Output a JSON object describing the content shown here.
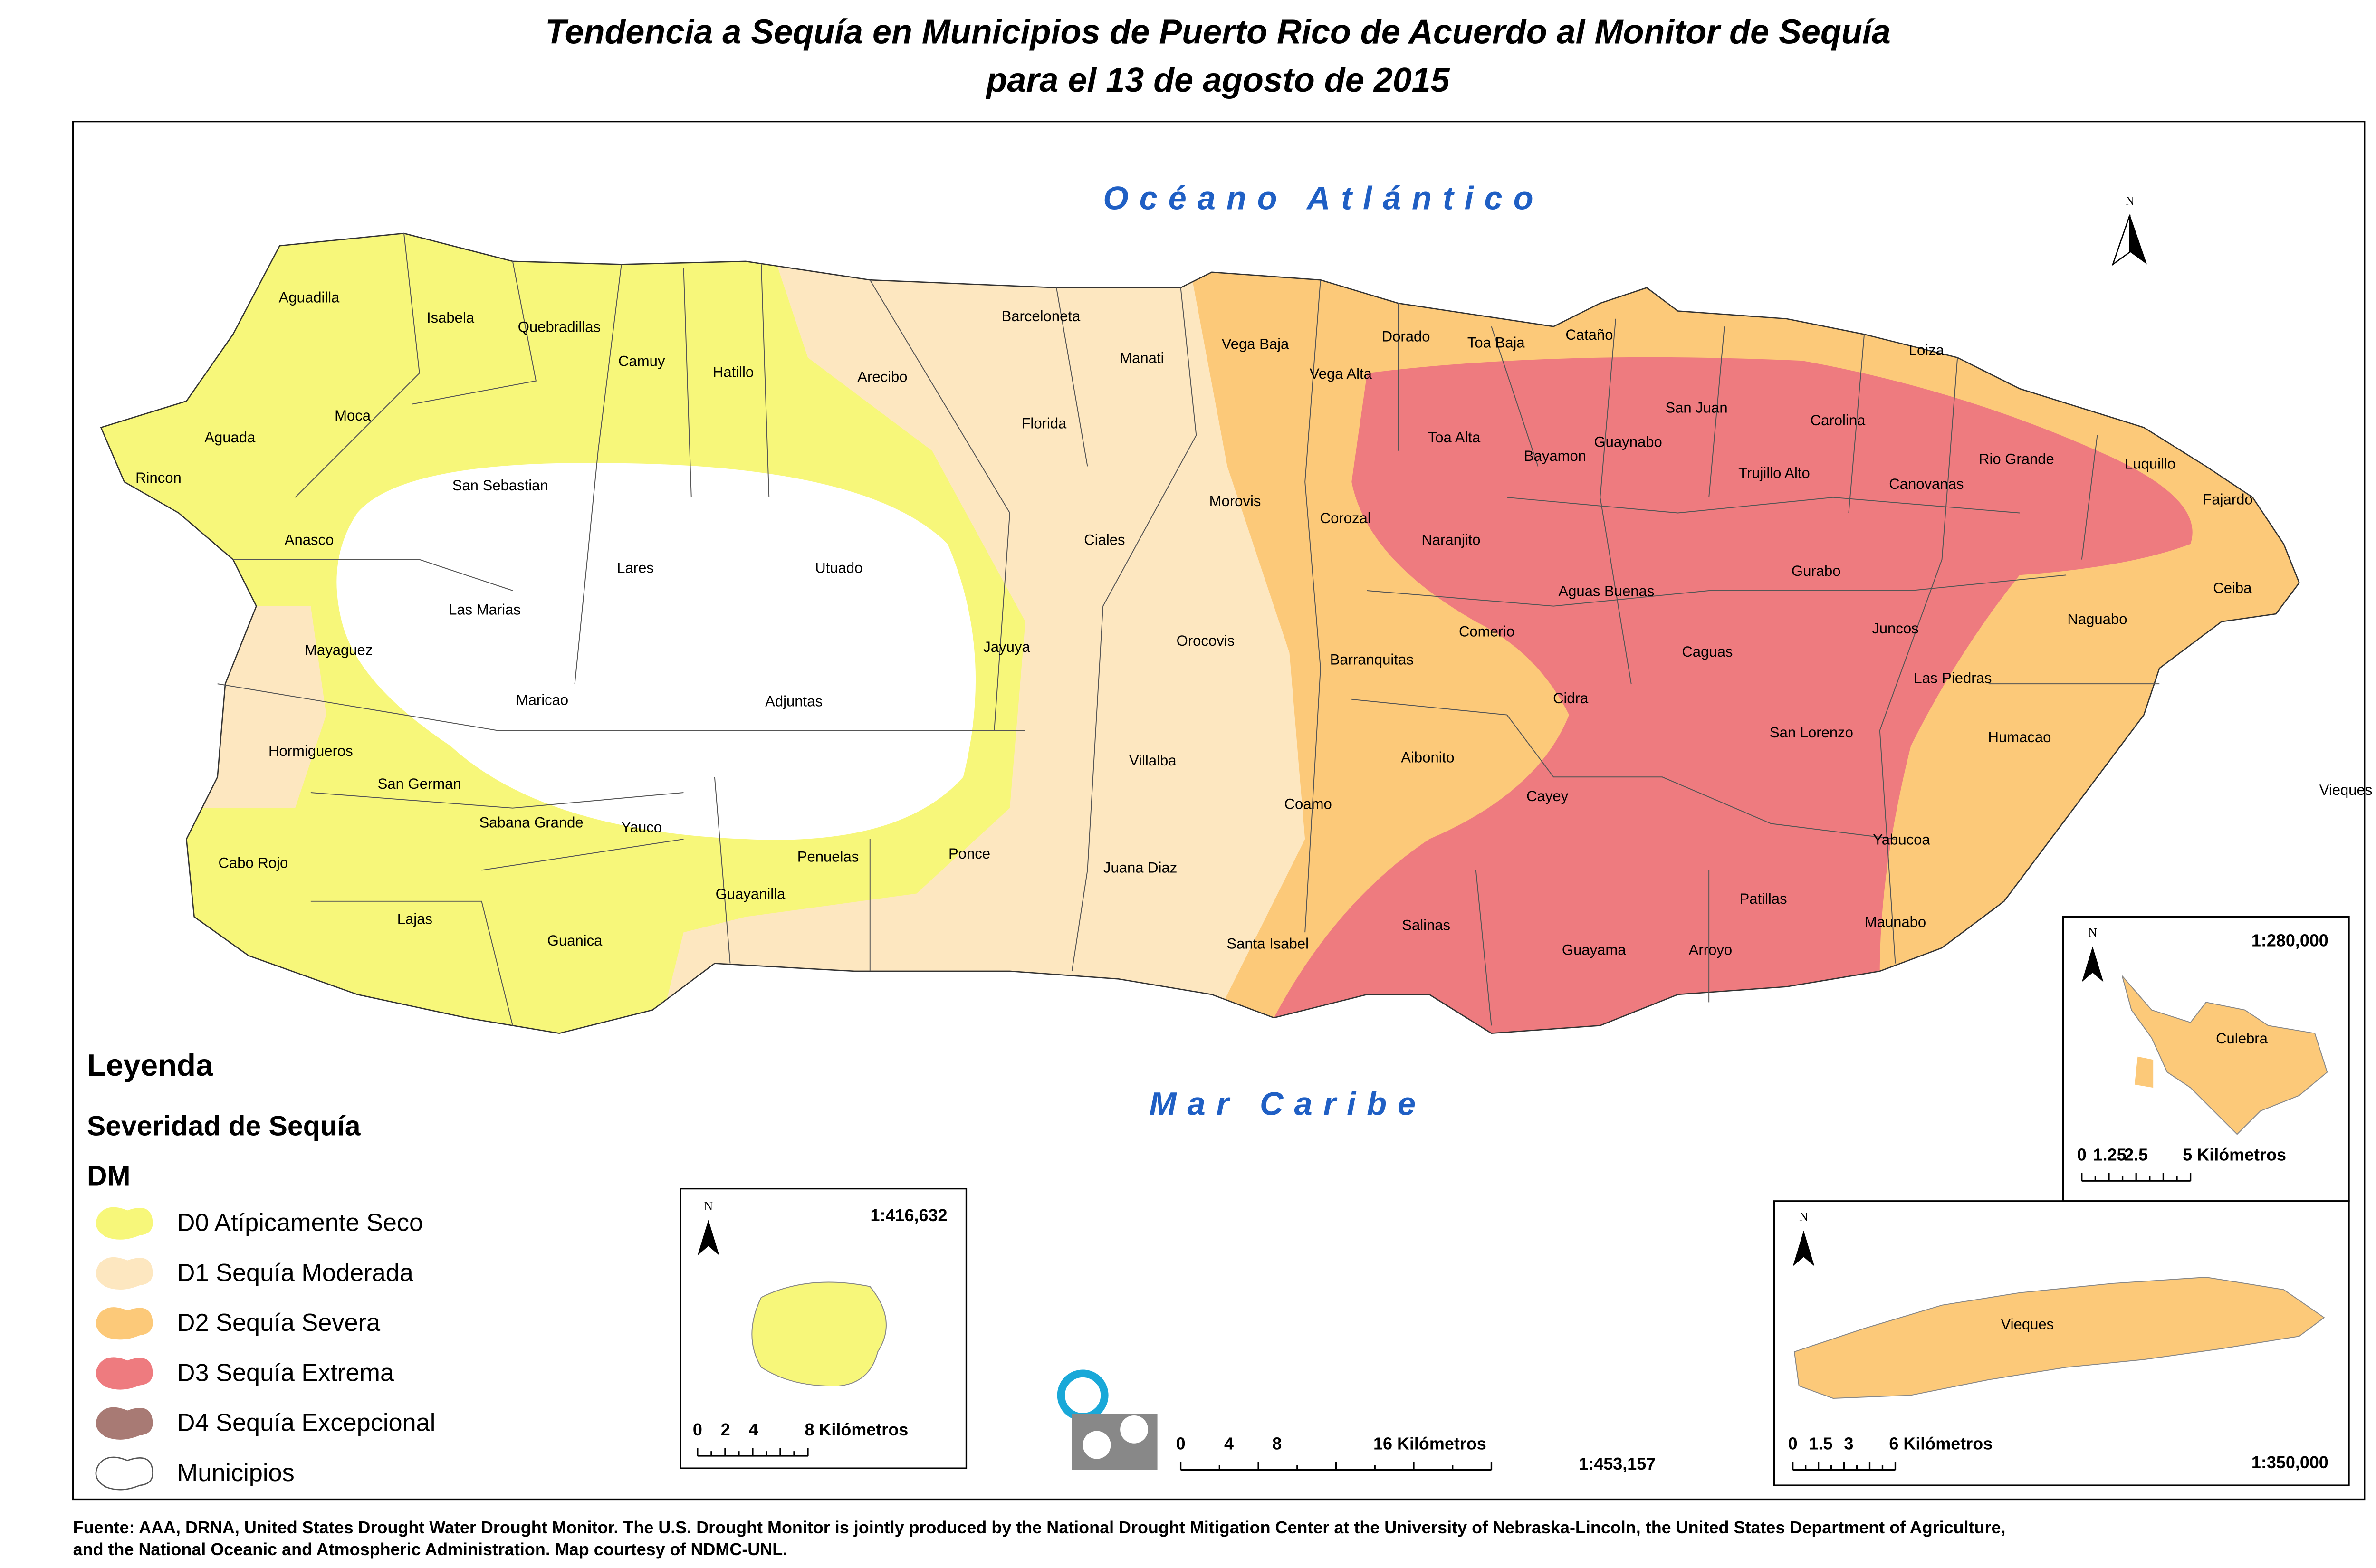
{
  "title": [
    "Tendencia a Sequía en Municipios de Puerto Rico de Acuerdo al Monitor de Sequía",
    "para el 13 de agosto de 2015"
  ],
  "ocean_labels": {
    "north": "Océano Atlántico",
    "south": "Mar Caribe"
  },
  "municipalities": [
    "Aguadilla",
    "Isabela",
    "Quebradillas",
    "Camuy",
    "Hatillo",
    "Arecibo",
    "Barceloneta",
    "Manati",
    "Florida",
    "Vega Baja",
    "Vega Alta",
    "Dorado",
    "Toa Baja",
    "Cataño",
    "Loiza",
    "Aguada",
    "Moca",
    "Rincon",
    "San Sebastian",
    "Anasco",
    "Lares",
    "Utuado",
    "Las Marias",
    "Mayaguez",
    "Maricao",
    "Adjuntas",
    "Jayuya",
    "Ciales",
    "Morovis",
    "Orocovis",
    "Corozal",
    "Toa Alta",
    "Bayamon",
    "Guaynabo",
    "San Juan",
    "Carolina",
    "Trujillo Alto",
    "Canovanas",
    "Rio Grande",
    "Luquillo",
    "Fajardo",
    "Naranjito",
    "Aguas Buenas",
    "Gurabo",
    "Ceiba",
    "Comerio",
    "Barranquitas",
    "Caguas",
    "Juncos",
    "Naguabo",
    "Las Piedras",
    "Cidra",
    "Hormigueros",
    "San German",
    "Villalba",
    "Aibonito",
    "San Lorenzo",
    "Humacao",
    "Coamo",
    "Cayey",
    "Yabucoa",
    "Sabana Grande",
    "Yauco",
    "Cabo Rojo",
    "Penuelas",
    "Ponce",
    "Juana Diaz",
    "Guayanilla",
    "Patillas",
    "Lajas",
    "Salinas",
    "Maunabo",
    "Santa Isabel",
    "Guanica",
    "Guayama",
    "Arroyo",
    "Vieques"
  ],
  "island_labels": {
    "culebra": "Culebra",
    "vieques": "Vieques"
  },
  "legend": {
    "title": "Leyenda",
    "subtitle": "Severidad de Sequía",
    "field": "DM",
    "items": [
      {
        "label": "D0 Atípicamente Seco",
        "color": "#f7f77a"
      },
      {
        "label": "D1 Sequía Moderada",
        "color": "#fde7c0"
      },
      {
        "label": "D2 Sequía Severa",
        "color": "#fcc979"
      },
      {
        "label": "D3 Sequía Extrema",
        "color": "#ee7b7f"
      },
      {
        "label": "D4 Sequía Excepcional",
        "color": "#a87a74"
      },
      {
        "label": "Municipios",
        "color": "#ffffff"
      }
    ]
  },
  "north_label": "N",
  "scales": {
    "main": {
      "ratio": "1:453,157",
      "bar": [
        "0",
        "4",
        "8",
        "16 Kilómetros"
      ]
    },
    "desecheo": {
      "ratio": "1:416,632",
      "bar": [
        "0",
        "2",
        "4",
        "8 Kilómetros"
      ]
    },
    "culebra": {
      "ratio": "1:280,000",
      "bar": [
        "0",
        "1.25",
        "2.5",
        "5 Kilómetros"
      ]
    },
    "vieques": {
      "ratio": "1:350,000",
      "bar": [
        "0",
        "1.5",
        "3",
        "6 Kilómetros"
      ]
    }
  },
  "source": [
    "Fuente: AAA, DRNA, United States Drought Water Drought Monitor. The U.S. Drought Monitor is jointly produced by the National Drought Mitigation Center at the University of Nebraska-Lincoln, the United States Department of Agriculture,",
    "and the National Oceanic and Atmospheric Administration. Map courtesy of NDMC-UNL."
  ]
}
